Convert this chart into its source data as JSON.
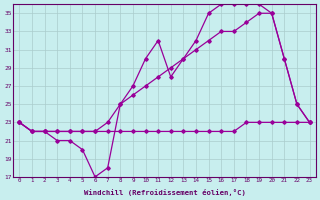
{
  "xlabel": "Windchill (Refroidissement éolien,°C)",
  "ylabel": "",
  "bg_color": "#c8eeee",
  "line_color": "#990099",
  "grid_color": "#aacccc",
  "axis_color": "#660066",
  "xlim": [
    -0.5,
    23.5
  ],
  "ylim": [
    17,
    36
  ],
  "xticks": [
    0,
    1,
    2,
    3,
    4,
    5,
    6,
    7,
    8,
    9,
    10,
    11,
    12,
    13,
    14,
    15,
    16,
    17,
    18,
    19,
    20,
    21,
    22,
    23
  ],
  "yticks": [
    17,
    19,
    21,
    23,
    25,
    27,
    29,
    31,
    33,
    35
  ],
  "line1": {
    "x": [
      0,
      1,
      2,
      3,
      4,
      5,
      6,
      7,
      8,
      9,
      10,
      11,
      12,
      13,
      14,
      15,
      16,
      17,
      18,
      19,
      20,
      21,
      22,
      23
    ],
    "y": [
      23,
      22,
      22,
      22,
      22,
      22,
      22,
      22,
      22,
      22,
      22,
      22,
      22,
      22,
      22,
      22,
      22,
      22,
      23,
      23,
      23,
      23,
      23,
      23
    ]
  },
  "line2": {
    "x": [
      0,
      1,
      2,
      3,
      4,
      5,
      6,
      7,
      8,
      9,
      10,
      11,
      12,
      13,
      14,
      15,
      16,
      17,
      18,
      19,
      20,
      21,
      22,
      23
    ],
    "y": [
      23,
      22,
      22,
      22,
      22,
      22,
      22,
      23,
      25,
      26,
      27,
      28,
      29,
      30,
      31,
      32,
      33,
      33,
      34,
      35,
      35,
      30,
      25,
      23
    ]
  },
  "line3": {
    "x": [
      0,
      1,
      2,
      3,
      4,
      5,
      6,
      7,
      8,
      9,
      10,
      11,
      12,
      13,
      14,
      15,
      16,
      17,
      18,
      19,
      20,
      21,
      22,
      23
    ],
    "y": [
      23,
      22,
      22,
      21,
      21,
      20,
      17,
      18,
      25,
      27,
      30,
      32,
      28,
      30,
      32,
      35,
      36,
      36,
      36,
      36,
      35,
      30,
      25,
      23
    ]
  }
}
